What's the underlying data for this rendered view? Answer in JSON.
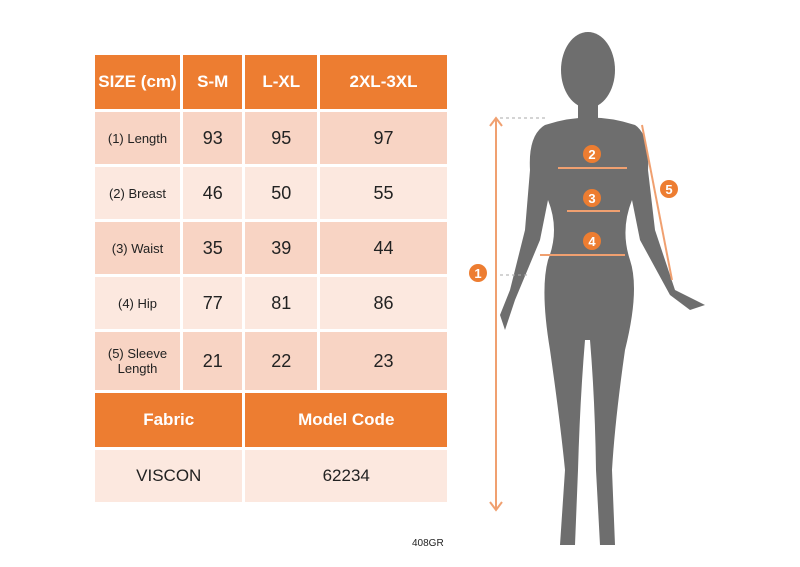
{
  "table": {
    "header": [
      "SIZE (cm)",
      "S-M",
      "L-XL",
      "2XL-3XL"
    ],
    "rows": [
      {
        "label": "(1) Length",
        "values": [
          "93",
          "95",
          "97"
        ]
      },
      {
        "label": "(2) Breast",
        "values": [
          "46",
          "50",
          "55"
        ]
      },
      {
        "label": "(3) Waist",
        "values": [
          "35",
          "39",
          "44"
        ]
      },
      {
        "label": "(4) Hip",
        "values": [
          "77",
          "81",
          "86"
        ]
      },
      {
        "label": "(5) Sleeve Length",
        "values": [
          "21",
          "22",
          "23"
        ]
      }
    ],
    "fabric_label": "Fabric",
    "model_code_label": "Model Code",
    "fabric_value": "VISCON",
    "model_code_value": "62234"
  },
  "product_code": "408GR",
  "figure": {
    "markers": [
      "1",
      "2",
      "3",
      "4",
      "5"
    ]
  },
  "colors": {
    "accent": "#ED7D31",
    "cell_dark": "#F8D4C4",
    "cell_light": "#FCE8DF",
    "silhouette": "#6E6E6E"
  }
}
